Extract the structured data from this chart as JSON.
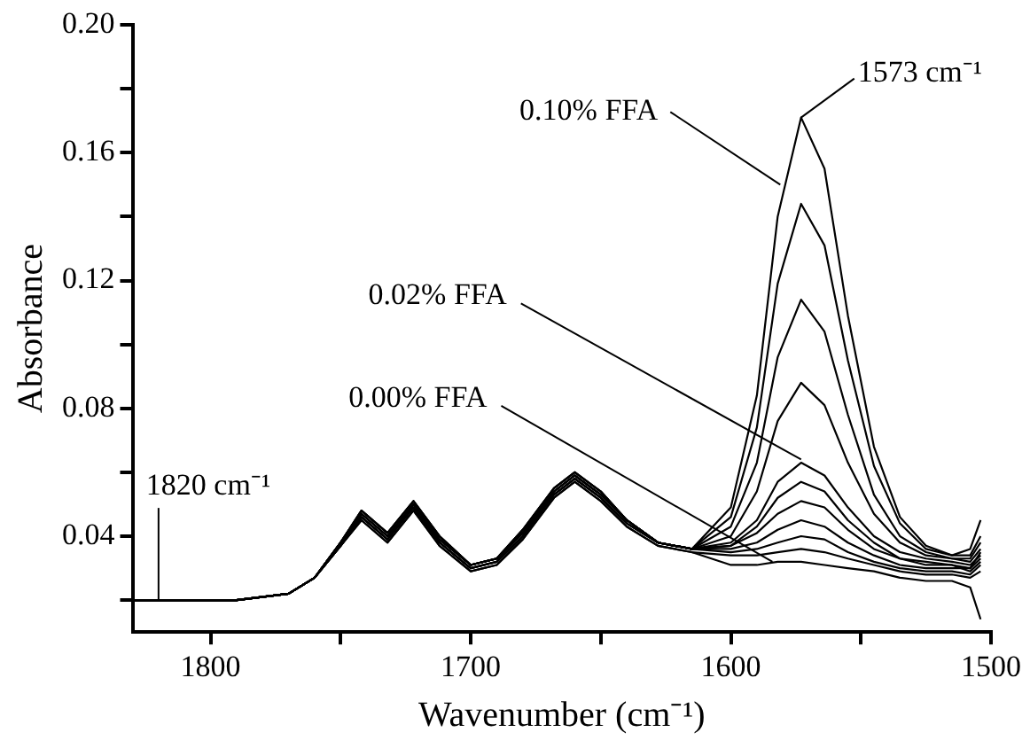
{
  "chart_data": {
    "type": "line",
    "xlabel": "Wavenumber (cm⁻¹)",
    "ylabel": "Absorbance",
    "x": [
      1830,
      1790,
      1770,
      1760,
      1750,
      1742,
      1732,
      1722,
      1712,
      1700,
      1690,
      1680,
      1668,
      1660,
      1650,
      1640,
      1628,
      1615,
      1600,
      1590,
      1582,
      1573,
      1564,
      1555,
      1545,
      1535,
      1525,
      1515,
      1508,
      1504
    ],
    "series": [
      {
        "color": "#000000",
        "values": [
          0.02,
          0.02,
          0.022,
          0.027,
          0.038,
          0.048,
          0.041,
          0.051,
          0.04,
          0.031,
          0.033,
          0.042,
          0.055,
          0.06,
          0.054,
          0.045,
          0.038,
          0.036,
          0.049,
          0.084,
          0.14,
          0.171,
          0.155,
          0.109,
          0.068,
          0.046,
          0.037,
          0.034,
          0.036,
          0.045
        ]
      },
      {
        "color": "#000000",
        "values": [
          0.02,
          0.02,
          0.022,
          0.027,
          0.038,
          0.048,
          0.041,
          0.051,
          0.04,
          0.031,
          0.033,
          0.042,
          0.055,
          0.06,
          0.054,
          0.045,
          0.038,
          0.036,
          0.046,
          0.074,
          0.119,
          0.144,
          0.131,
          0.095,
          0.062,
          0.044,
          0.036,
          0.034,
          0.034,
          0.04
        ]
      },
      {
        "color": "#000000",
        "values": [
          0.02,
          0.02,
          0.022,
          0.027,
          0.038,
          0.048,
          0.041,
          0.051,
          0.04,
          0.031,
          0.033,
          0.042,
          0.055,
          0.06,
          0.054,
          0.045,
          0.038,
          0.036,
          0.043,
          0.063,
          0.096,
          0.114,
          0.104,
          0.078,
          0.053,
          0.04,
          0.035,
          0.033,
          0.033,
          0.038
        ]
      },
      {
        "color": "#000000",
        "values": [
          0.02,
          0.02,
          0.022,
          0.027,
          0.038,
          0.047,
          0.04,
          0.05,
          0.039,
          0.031,
          0.033,
          0.041,
          0.054,
          0.059,
          0.053,
          0.045,
          0.038,
          0.036,
          0.04,
          0.054,
          0.076,
          0.088,
          0.081,
          0.063,
          0.047,
          0.038,
          0.034,
          0.033,
          0.032,
          0.036
        ]
      },
      {
        "color": "#000000",
        "values": [
          0.02,
          0.02,
          0.022,
          0.027,
          0.038,
          0.047,
          0.04,
          0.05,
          0.039,
          0.031,
          0.033,
          0.041,
          0.054,
          0.059,
          0.053,
          0.045,
          0.038,
          0.036,
          0.038,
          0.045,
          0.057,
          0.063,
          0.059,
          0.049,
          0.04,
          0.035,
          0.033,
          0.032,
          0.031,
          0.034
        ]
      },
      {
        "color": "#000000",
        "values": [
          0.02,
          0.02,
          0.022,
          0.027,
          0.038,
          0.047,
          0.04,
          0.05,
          0.039,
          0.031,
          0.033,
          0.041,
          0.054,
          0.059,
          0.053,
          0.045,
          0.038,
          0.036,
          0.037,
          0.043,
          0.052,
          0.057,
          0.054,
          0.045,
          0.038,
          0.033,
          0.032,
          0.031,
          0.03,
          0.035
        ]
      },
      {
        "color": "#000000",
        "values": [
          0.02,
          0.02,
          0.022,
          0.027,
          0.037,
          0.046,
          0.039,
          0.049,
          0.038,
          0.03,
          0.032,
          0.04,
          0.053,
          0.058,
          0.052,
          0.044,
          0.038,
          0.036,
          0.037,
          0.041,
          0.047,
          0.051,
          0.049,
          0.042,
          0.036,
          0.033,
          0.031,
          0.031,
          0.029,
          0.032
        ]
      },
      {
        "color": "#000000",
        "values": [
          0.02,
          0.02,
          0.022,
          0.027,
          0.037,
          0.046,
          0.039,
          0.049,
          0.038,
          0.03,
          0.032,
          0.04,
          0.053,
          0.058,
          0.052,
          0.044,
          0.038,
          0.036,
          0.036,
          0.038,
          0.042,
          0.045,
          0.043,
          0.038,
          0.034,
          0.031,
          0.03,
          0.03,
          0.03,
          0.033
        ]
      },
      {
        "color": "#000000",
        "values": [
          0.02,
          0.02,
          0.022,
          0.027,
          0.037,
          0.046,
          0.039,
          0.049,
          0.038,
          0.03,
          0.032,
          0.04,
          0.053,
          0.058,
          0.052,
          0.044,
          0.038,
          0.036,
          0.035,
          0.036,
          0.038,
          0.04,
          0.039,
          0.035,
          0.032,
          0.03,
          0.029,
          0.029,
          0.028,
          0.031
        ]
      },
      {
        "color": "#000000",
        "values": [
          0.02,
          0.02,
          0.022,
          0.027,
          0.037,
          0.045,
          0.038,
          0.048,
          0.037,
          0.029,
          0.031,
          0.039,
          0.052,
          0.057,
          0.051,
          0.043,
          0.037,
          0.035,
          0.034,
          0.034,
          0.035,
          0.036,
          0.035,
          0.033,
          0.031,
          0.029,
          0.028,
          0.028,
          0.027,
          0.029
        ]
      },
      {
        "color": "#000000",
        "values": [
          0.02,
          0.02,
          0.022,
          0.027,
          0.037,
          0.045,
          0.038,
          0.048,
          0.037,
          0.029,
          0.031,
          0.039,
          0.052,
          0.057,
          0.051,
          0.043,
          0.037,
          0.035,
          0.031,
          0.031,
          0.032,
          0.032,
          0.031,
          0.03,
          0.029,
          0.027,
          0.026,
          0.026,
          0.024,
          0.014
        ]
      }
    ],
    "xlim": [
      1830,
      1500
    ],
    "xticks": [
      1800,
      {
        "value": 1750,
        "label": null
      },
      1700,
      {
        "value": 1650,
        "label": null
      },
      1600,
      {
        "value": 1550,
        "label": null
      },
      1500
    ],
    "ylim": [
      0.01,
      0.2
    ],
    "yticks": [
      {
        "value": 0.02,
        "label": null
      },
      0.04,
      {
        "value": 0.06,
        "label": null
      },
      0.08,
      {
        "value": 0.1,
        "label": null
      },
      0.12,
      {
        "value": 0.14,
        "label": null
      },
      0.16,
      {
        "value": 0.18,
        "label": null
      },
      {
        "value": 0.2,
        "label": "0.20"
      }
    ],
    "grid": false,
    "legend": false,
    "marker": "none",
    "line_style": "solid",
    "annotations": [
      {
        "text": "0.10% FFA",
        "x": 1581,
        "y": 0.15
      },
      {
        "text": "0.02% FFA",
        "x": 1573,
        "y": 0.064
      },
      {
        "text": "0.00% FFA",
        "x": 1584,
        "y": 0.032
      },
      {
        "text": "1573 cm⁻¹",
        "x": 1573,
        "y": 0.171
      },
      {
        "text": "1820 cm⁻¹",
        "x": 1820,
        "y": 0.02
      }
    ]
  }
}
